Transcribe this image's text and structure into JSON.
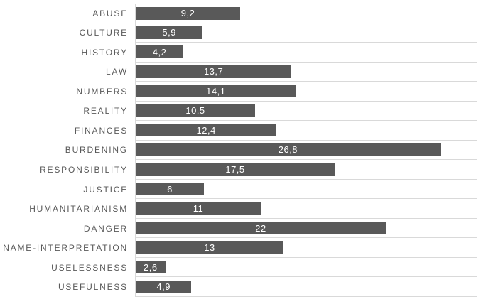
{
  "chart_data": {
    "type": "bar",
    "orientation": "horizontal",
    "title": "",
    "xlabel": "",
    "ylabel": "",
    "xlim": [
      0,
      30
    ],
    "grid": "category-separator horizontal gridlines, no value-axis labels",
    "legend_position": "none",
    "bar_color": "#595959",
    "value_label_color": "#ffffff",
    "gridline_color": "#d9d9d9",
    "category_label_color": "#595959",
    "categories": [
      "ABUSE",
      "CULTURE",
      "HISTORY",
      "LAW",
      "NUMBERS",
      "REALITY",
      "FINANCES",
      "BURDENING",
      "RESPONSIBILITY",
      "JUSTICE",
      "HUMANITARIANISM",
      "DANGER",
      "NAME-INTERPRETATION",
      "USELESSNESS",
      "USEFULNESS"
    ],
    "values": [
      9.2,
      5.9,
      4.2,
      13.7,
      14.1,
      10.5,
      12.4,
      26.8,
      17.5,
      6,
      11,
      22,
      13,
      2.6,
      4.9
    ],
    "value_labels": [
      "9,2",
      "5,9",
      "4,2",
      "13,7",
      "14,1",
      "10,5",
      "12,4",
      "26,8",
      "17,5",
      "6",
      "11",
      "22",
      "13",
      "2,6",
      "4,9"
    ]
  }
}
